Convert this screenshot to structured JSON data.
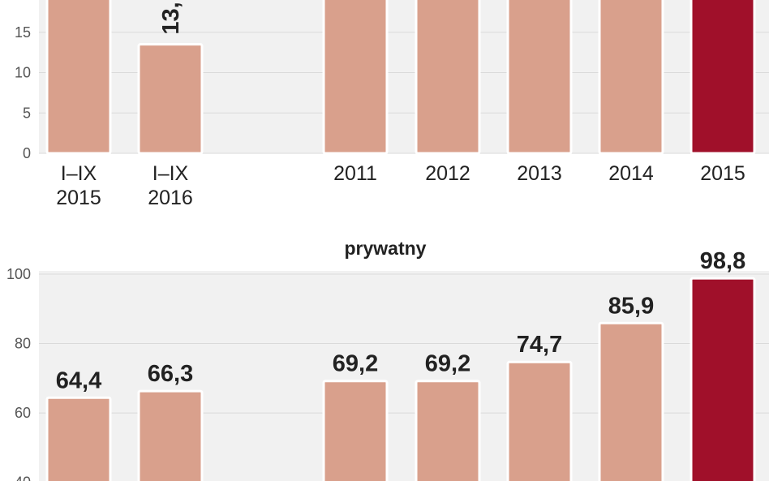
{
  "chart_data": [
    {
      "type": "bar",
      "title": "",
      "xlabel": "",
      "ylabel": "",
      "ylim": [
        0,
        20
      ],
      "yticks": [
        0,
        5,
        10,
        15
      ],
      "categories": [
        "I–IX\n2015",
        "I–IX\n2016",
        "2011",
        "2012",
        "2013",
        "2014",
        "2015"
      ],
      "values": [
        19.6,
        13.5,
        19.6,
        19.6,
        19.6,
        19.6,
        19.6
      ],
      "value_labels": [
        "",
        "13,",
        "",
        "",
        "",
        "",
        ""
      ],
      "highlight_index": 6,
      "grid": true
    },
    {
      "type": "bar",
      "title": "prywatny",
      "xlabel": "",
      "ylabel": "",
      "ylim": [
        35,
        100
      ],
      "yticks": [
        40,
        60,
        80,
        100
      ],
      "categories": [
        "I–IX\n2015",
        "I–IX\n2016",
        "2011",
        "2012",
        "2013",
        "2014",
        "2015"
      ],
      "values": [
        64.4,
        66.3,
        69.2,
        69.2,
        74.7,
        85.9,
        98.8
      ],
      "value_labels": [
        "64,4",
        "66,3",
        "69,2",
        "69,2",
        "74,7",
        "85,9",
        "98,8"
      ],
      "highlight_index": 6,
      "grid": true
    }
  ],
  "colors": {
    "bar": "#D9A08C",
    "bar_highlight": "#A0102A",
    "plot_bg": "#F1F1F1",
    "grid": "#DADADA"
  }
}
